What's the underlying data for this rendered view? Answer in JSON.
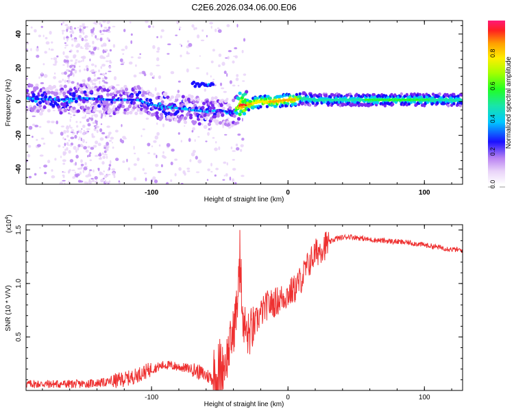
{
  "title": "C2E6.2026.034.06.00.E06",
  "colors": {
    "snr_line": "#ee3030",
    "axis": "#000000",
    "colormap": [
      "#ffffff",
      "#e9d3f9",
      "#b982f2",
      "#7a2bf0",
      "#1a10ff",
      "#00c8ff",
      "#19e5a8",
      "#22ff22",
      "#a6ff00",
      "#ffee00",
      "#ffa000",
      "#ff2020",
      "#ff1a78"
    ]
  },
  "chart_data": [
    {
      "type": "heatmap",
      "name": "spectrogram",
      "xlabel": "Height of straight line (km)",
      "ylabel": "Frequency (Hz)",
      "xlim": [
        -192,
        128
      ],
      "ylim": [
        -49,
        48
      ],
      "xticks": [
        -100,
        0,
        100
      ],
      "xtick_labels": [
        "-100",
        "0",
        "100"
      ],
      "yticks": [
        -40,
        -20,
        0,
        20,
        40
      ],
      "ytick_labels": [
        "-40",
        "-20",
        "0",
        "20",
        "40"
      ],
      "ridge_x": [
        -192,
        -170,
        -150,
        -130,
        -110,
        -100,
        -90,
        -80,
        -70,
        -60,
        -50,
        -40,
        -35,
        -30,
        -20,
        -10,
        0,
        5,
        10,
        20,
        40,
        60,
        80,
        100,
        128
      ],
      "ridge_freq": [
        2,
        1,
        2,
        1,
        1,
        -2,
        -3,
        -4,
        -5,
        -6,
        -5,
        -7,
        -2,
        -2,
        0,
        0,
        1,
        1,
        2,
        1,
        1,
        1,
        1,
        1,
        1
      ],
      "ridge_amplitude": [
        0.32,
        0.3,
        0.3,
        0.28,
        0.28,
        0.3,
        0.35,
        0.3,
        0.3,
        0.3,
        0.25,
        0.3,
        0.82,
        0.8,
        0.78,
        0.8,
        0.82,
        0.85,
        0.52,
        0.5,
        0.5,
        0.55,
        0.55,
        0.55,
        0.5
      ],
      "colorbar": {
        "label": "Normalized spectral amplitude",
        "range": [
          0,
          1
        ],
        "ticks": [
          0,
          0.2,
          0.4,
          0.6,
          0.8
        ],
        "tick_labels": [
          "0.0",
          "0.2",
          "0.4",
          "0.6",
          "0.8"
        ]
      }
    },
    {
      "type": "line",
      "name": "snr",
      "xlabel": "Height of straight line (km)",
      "ylabel": "SNR (10 * V/V)",
      "y_multiplier": "(x10",
      "y_multiplier_exp": "4",
      "y_multiplier_close": ")",
      "xlim": [
        -192,
        128
      ],
      "ylim": [
        0,
        1.55
      ],
      "xticks": [
        -100,
        0,
        100
      ],
      "xtick_labels": [
        "-100",
        "0",
        "100"
      ],
      "yticks": [
        0.5,
        1.0,
        1.5
      ],
      "ytick_labels": [
        "0.5",
        "1.0",
        "1.5"
      ],
      "series": [
        {
          "name": "SNR",
          "x": [
            -192,
            -170,
            -150,
            -130,
            -115,
            -100,
            -90,
            -80,
            -70,
            -60,
            -52,
            -45,
            -40,
            -37,
            -35,
            -33,
            -30,
            -25,
            -20,
            -15,
            -10,
            -5,
            0,
            5,
            10,
            15,
            20,
            25,
            30,
            35,
            40,
            45,
            50,
            60,
            70,
            80,
            90,
            100,
            110,
            120,
            128
          ],
          "y": [
            0.06,
            0.06,
            0.06,
            0.08,
            0.12,
            0.2,
            0.24,
            0.22,
            0.2,
            0.14,
            0.1,
            0.3,
            0.55,
            0.85,
            1.2,
            0.7,
            0.5,
            0.6,
            0.72,
            0.8,
            0.82,
            0.86,
            0.9,
            0.95,
            1.05,
            1.18,
            1.28,
            1.34,
            1.38,
            1.42,
            1.43,
            1.44,
            1.43,
            1.41,
            1.4,
            1.39,
            1.38,
            1.36,
            1.34,
            1.32,
            1.31
          ]
        }
      ]
    }
  ]
}
